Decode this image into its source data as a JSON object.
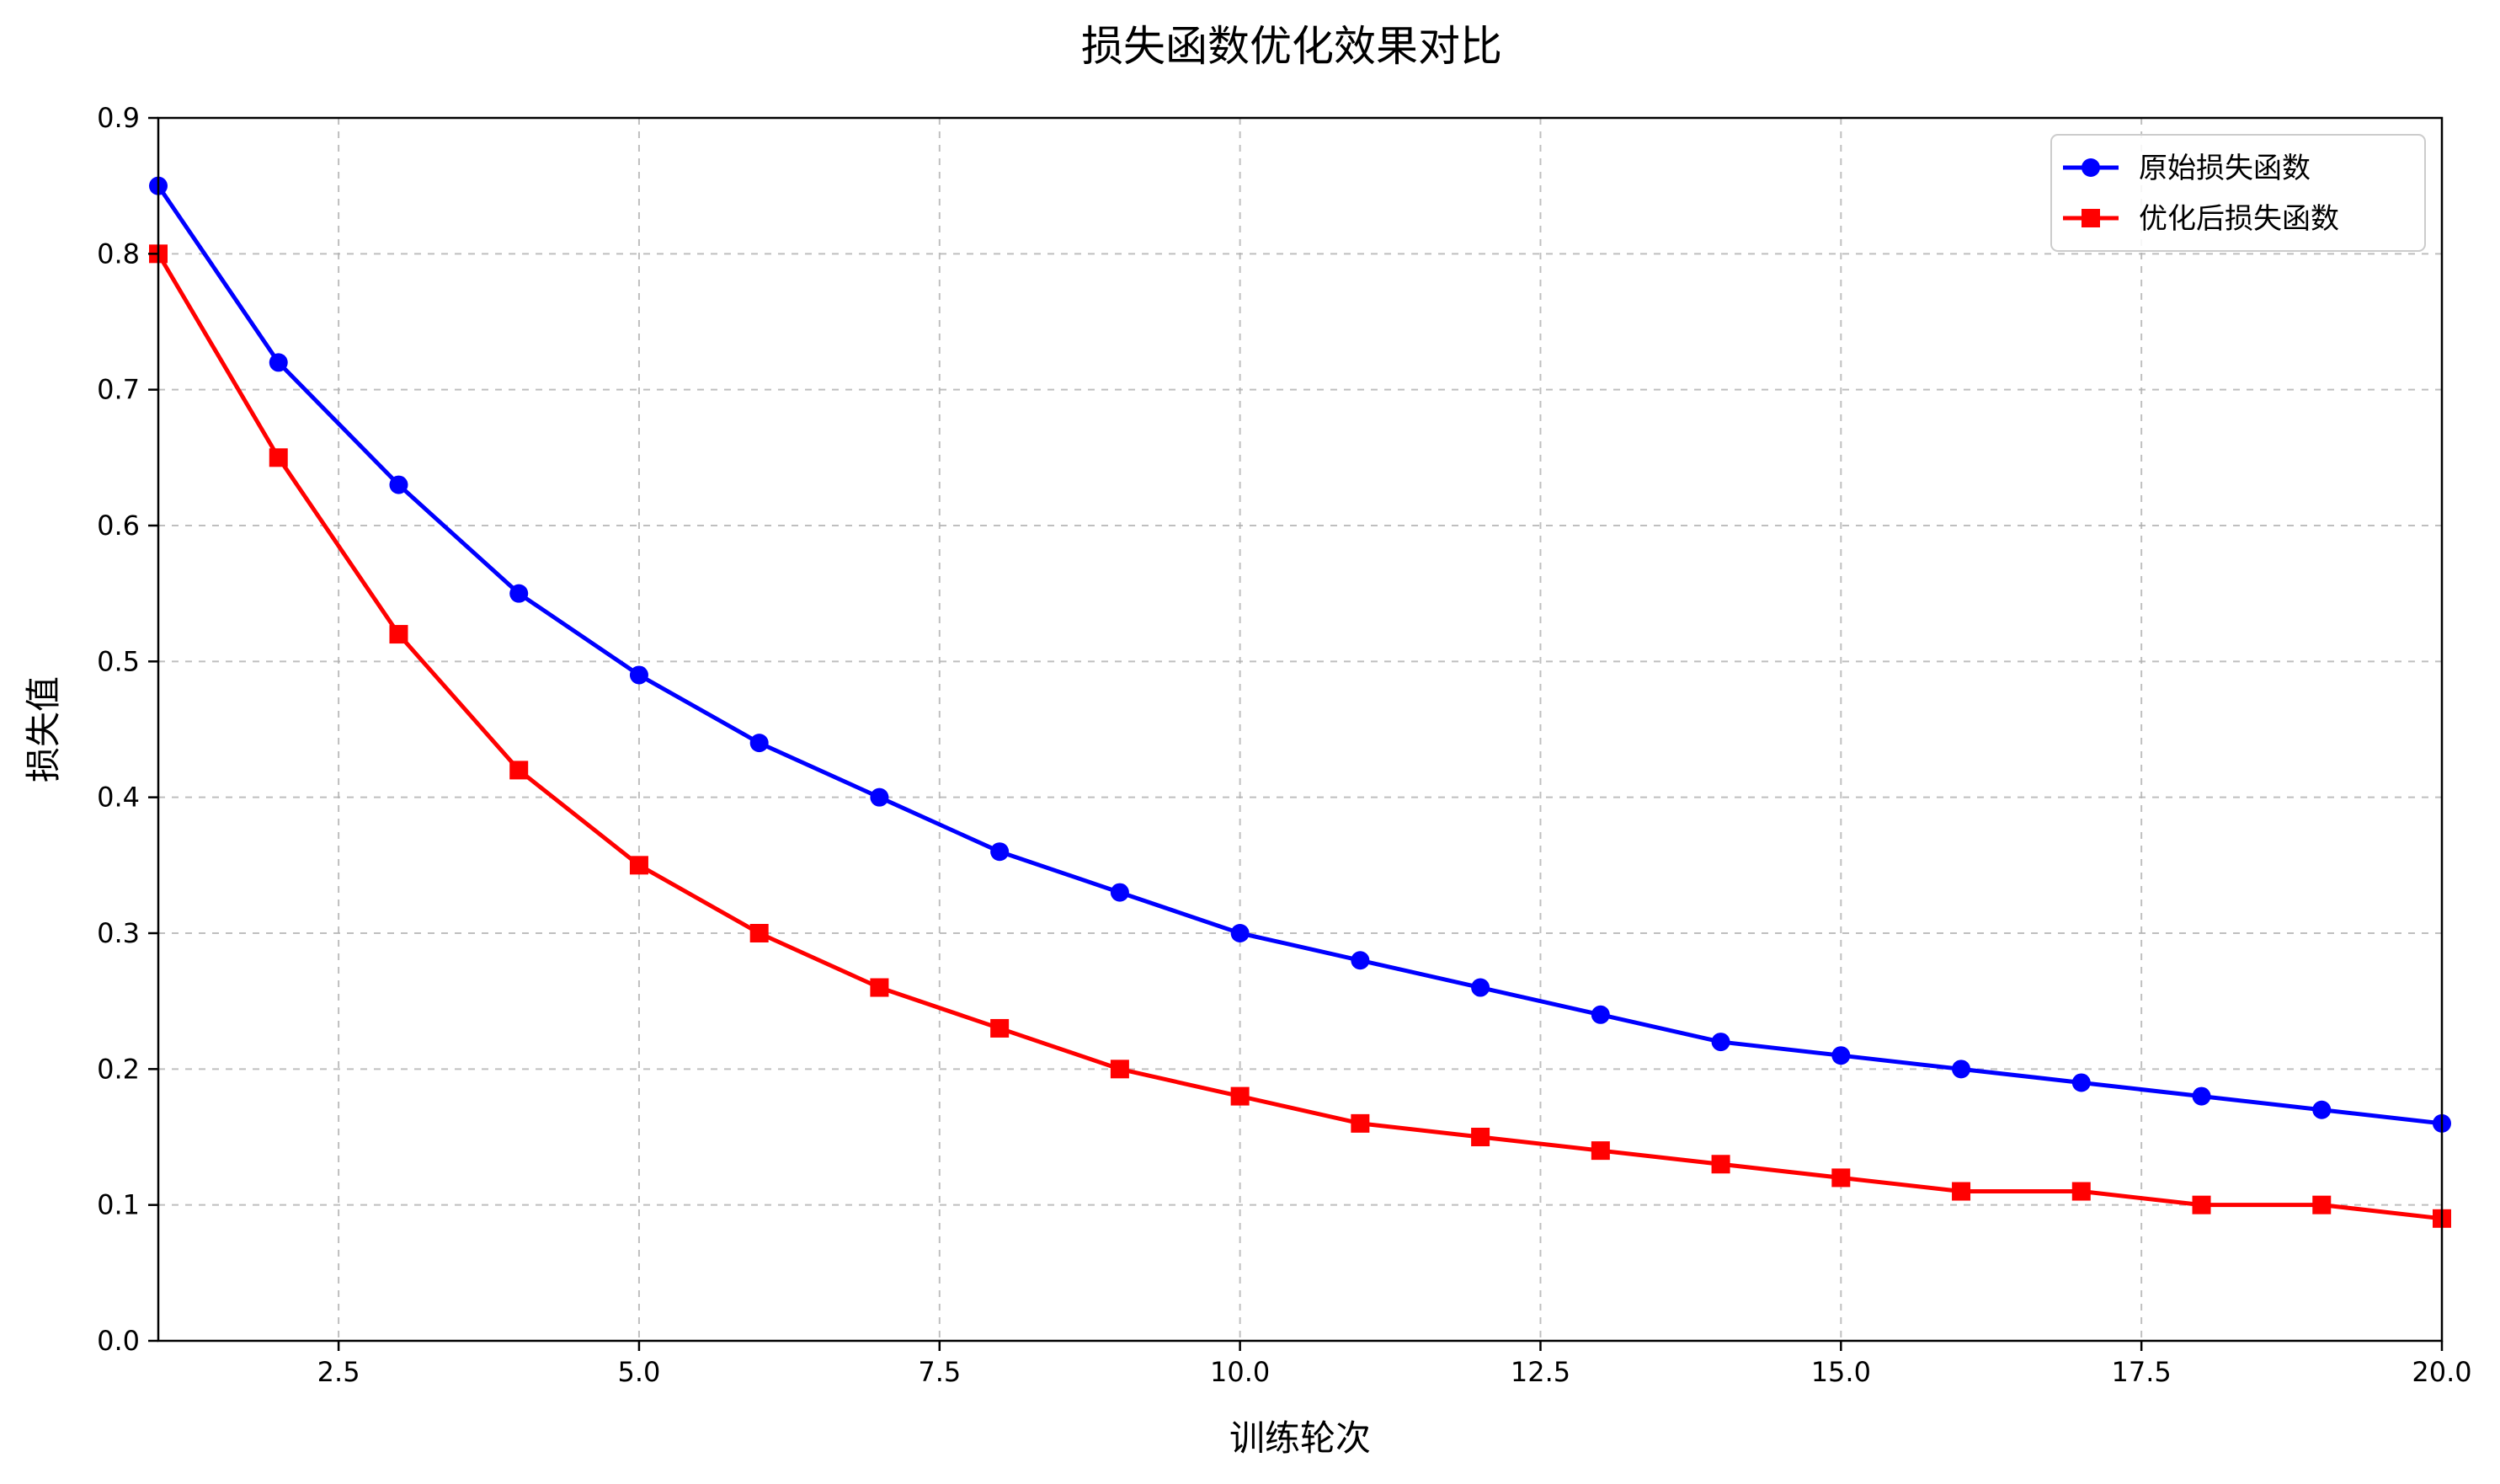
{
  "chart_data": {
    "type": "line",
    "title": "损失函数优化效果对比",
    "xlabel": "训练轮次",
    "ylabel": "损失值",
    "xlim": [
      1,
      20
    ],
    "ylim": [
      0,
      0.9
    ],
    "xticks": [
      "2.5",
      "5.0",
      "7.5",
      "10.0",
      "12.5",
      "15.0",
      "17.5",
      "20.0"
    ],
    "yticks": [
      "0.0",
      "0.1",
      "0.2",
      "0.3",
      "0.4",
      "0.5",
      "0.6",
      "0.7",
      "0.8",
      "0.9"
    ],
    "grid": true,
    "legend_position": "top-right",
    "x": [
      1,
      2,
      3,
      4,
      5,
      6,
      7,
      8,
      9,
      10,
      11,
      12,
      13,
      14,
      15,
      16,
      17,
      18,
      19,
      20
    ],
    "series": [
      {
        "name": "原始损失函数",
        "color": "#0000ff",
        "marker": "circle",
        "values": [
          0.85,
          0.72,
          0.63,
          0.55,
          0.49,
          0.44,
          0.4,
          0.36,
          0.33,
          0.3,
          0.28,
          0.26,
          0.24,
          0.22,
          0.21,
          0.2,
          0.19,
          0.18,
          0.17,
          0.16
        ]
      },
      {
        "name": "优化后损失函数",
        "color": "#ff0000",
        "marker": "square",
        "values": [
          0.8,
          0.65,
          0.52,
          0.42,
          0.35,
          0.3,
          0.26,
          0.23,
          0.2,
          0.18,
          0.16,
          0.15,
          0.14,
          0.13,
          0.12,
          0.11,
          0.11,
          0.1,
          0.1,
          0.09
        ]
      }
    ]
  }
}
